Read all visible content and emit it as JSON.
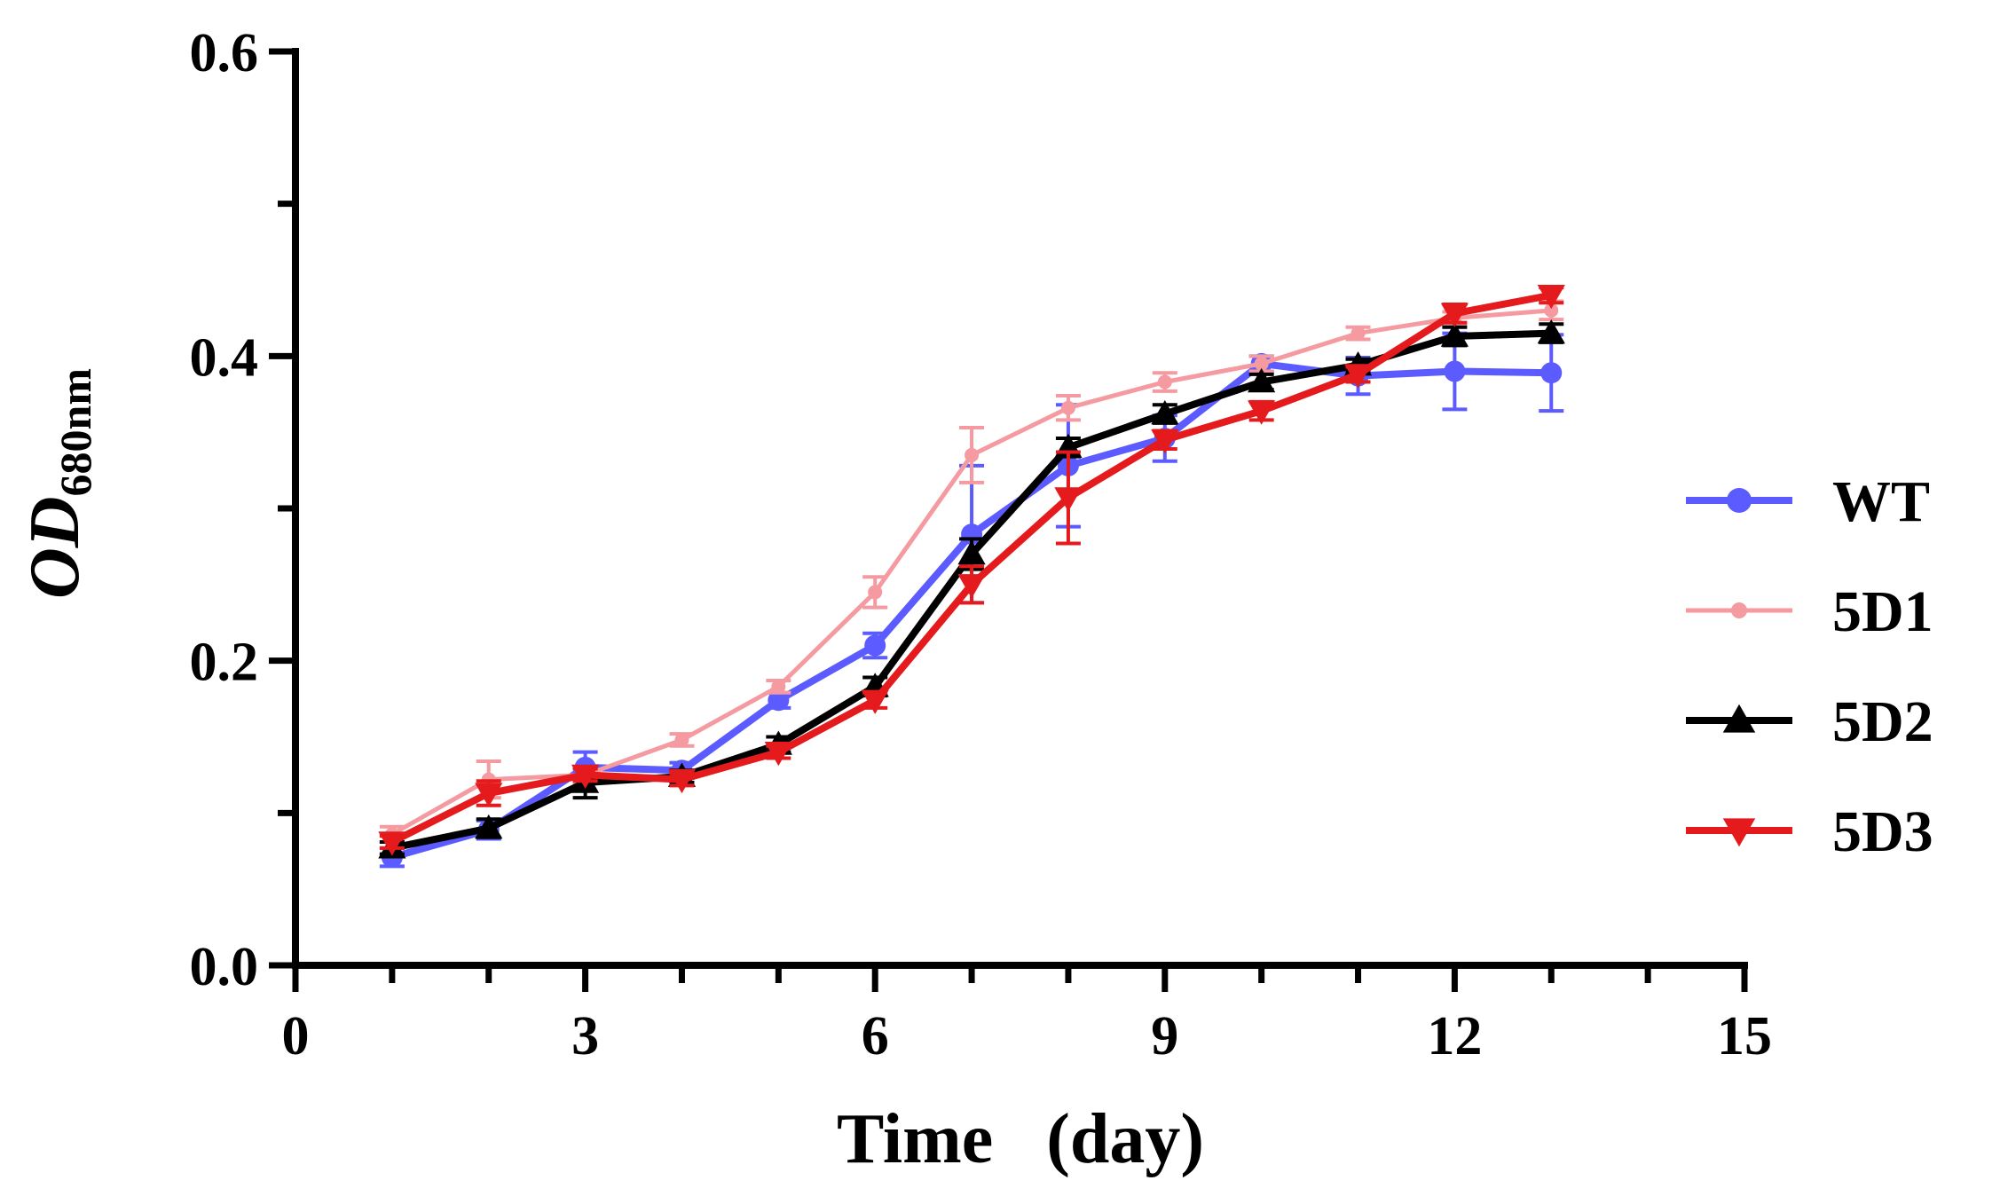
{
  "chart_data": {
    "type": "line",
    "title": "",
    "xlabel": "Time   (day)",
    "ylabel_main": "OD",
    "ylabel_sub": "680nm",
    "xlim": [
      0,
      15
    ],
    "ylim": [
      0.0,
      0.6
    ],
    "x_ticks": [
      0,
      3,
      6,
      9,
      12,
      15
    ],
    "x_tick_labels": [
      "0",
      "3",
      "6",
      "9",
      "12",
      "15"
    ],
    "y_ticks": [
      0.0,
      0.2,
      0.4,
      0.6
    ],
    "y_tick_labels": [
      "0.0",
      "0.2",
      "0.4",
      "0.6"
    ],
    "grid": false,
    "legend_position": "right",
    "x": [
      1,
      2,
      3,
      4,
      5,
      6,
      7,
      8,
      9,
      10,
      11,
      12,
      13
    ],
    "series": [
      {
        "name": "WT",
        "color": "#5b5bff",
        "marker": "circle",
        "values": [
          0.071,
          0.089,
          0.13,
          0.128,
          0.174,
          0.21,
          0.283,
          0.328,
          0.346,
          0.395,
          0.387,
          0.39,
          0.389
        ],
        "errors": [
          0.006,
          0.006,
          0.01,
          0.005,
          0.005,
          0.008,
          0.045,
          0.04,
          0.015,
          0.005,
          0.012,
          0.025,
          0.025
        ]
      },
      {
        "name": "5D1",
        "color": "#f59aa0",
        "marker": "circle",
        "values": [
          0.086,
          0.122,
          0.125,
          0.148,
          0.183,
          0.245,
          0.335,
          0.366,
          0.383,
          0.395,
          0.415,
          0.425,
          0.43
        ],
        "errors": [
          0.005,
          0.012,
          0.005,
          0.004,
          0.004,
          0.01,
          0.018,
          0.008,
          0.006,
          0.005,
          0.004,
          0.004,
          0.006
        ]
      },
      {
        "name": "5D2",
        "color": "#000000",
        "marker": "triangle-up",
        "values": [
          0.077,
          0.09,
          0.12,
          0.124,
          0.145,
          0.183,
          0.27,
          0.34,
          0.362,
          0.383,
          0.394,
          0.413,
          0.415
        ],
        "errors": [
          0.004,
          0.006,
          0.01,
          0.004,
          0.005,
          0.006,
          0.01,
          0.006,
          0.006,
          0.005,
          0.004,
          0.006,
          0.006
        ]
      },
      {
        "name": "5D3",
        "color": "#e41a1c",
        "marker": "triangle-down",
        "values": [
          0.081,
          0.113,
          0.125,
          0.122,
          0.14,
          0.174,
          0.25,
          0.307,
          0.345,
          0.364,
          0.388,
          0.428,
          0.44
        ],
        "errors": [
          0.004,
          0.008,
          0.004,
          0.004,
          0.004,
          0.005,
          0.012,
          0.03,
          0.006,
          0.006,
          0.005,
          0.006,
          0.005
        ]
      }
    ]
  }
}
